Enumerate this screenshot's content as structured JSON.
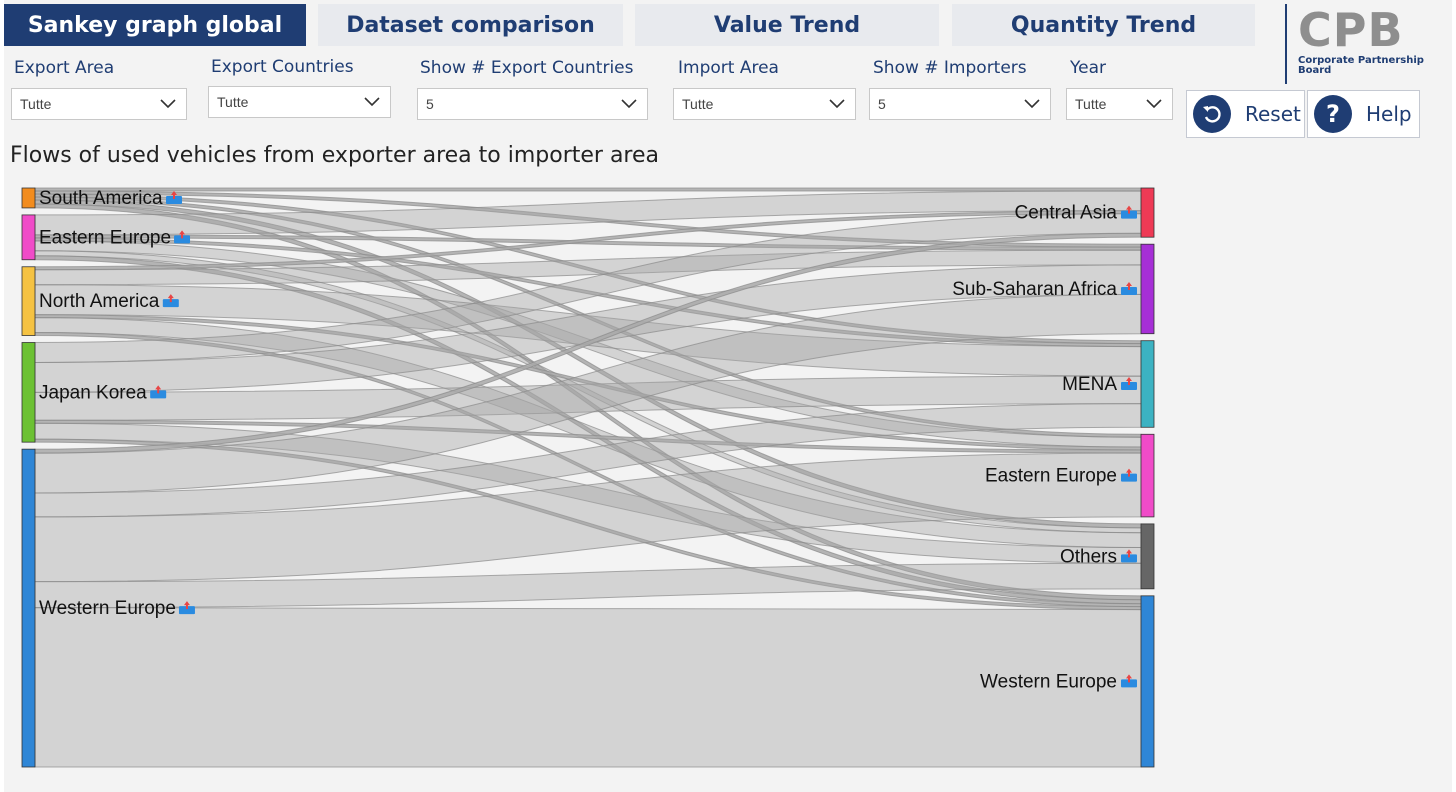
{
  "tabs": [
    {
      "label": "Sankey graph global",
      "active": true
    },
    {
      "label": "Dataset comparison",
      "active": false
    },
    {
      "label": "Value Trend",
      "active": false
    },
    {
      "label": "Quantity Trend",
      "active": false
    }
  ],
  "logo": {
    "mark": "CPB",
    "line1": "Corporate Partnership",
    "line2": "Board"
  },
  "filters": [
    {
      "label": "Export Area",
      "value": "Tutte"
    },
    {
      "label": "Export Countries",
      "value": "Tutte"
    },
    {
      "label": "Show # Export Countries",
      "value": "5"
    },
    {
      "label": "Import Area",
      "value": "Tutte"
    },
    {
      "label": "Show # Importers",
      "value": "5"
    },
    {
      "label": "Year",
      "value": "Tutte"
    }
  ],
  "buttons": {
    "reset": "Reset",
    "help": "Help",
    "reset_icon": "reset-icon",
    "help_icon": "help-icon"
  },
  "chart_data": {
    "type": "sankey",
    "title": "Flows of used vehicles from exporter area to importer area",
    "sources": [
      {
        "name": "South America",
        "color": "#f28c1e"
      },
      {
        "name": "Eastern Europe",
        "color": "#f04bc8"
      },
      {
        "name": "North America",
        "color": "#f5c242"
      },
      {
        "name": "Japan Korea",
        "color": "#6cc133"
      },
      {
        "name": "Western Europe",
        "color": "#2f86d6"
      }
    ],
    "targets": [
      {
        "name": "Central Asia",
        "color": "#ee3a55"
      },
      {
        "name": "Sub-Saharan Africa",
        "color": "#a62fd6"
      },
      {
        "name": "MENA",
        "color": "#3cb2c2"
      },
      {
        "name": "Eastern Europe",
        "color": "#f04bc8"
      },
      {
        "name": "Others",
        "color": "#666666"
      },
      {
        "name": "Western Europe",
        "color": "#2f86d6"
      }
    ],
    "links": [
      {
        "source": 0,
        "target": 0,
        "value": 0.3
      },
      {
        "source": 0,
        "target": 1,
        "value": 0.3
      },
      {
        "source": 0,
        "target": 2,
        "value": 0.3
      },
      {
        "source": 0,
        "target": 3,
        "value": 0.3
      },
      {
        "source": 0,
        "target": 4,
        "value": 0.4
      },
      {
        "source": 0,
        "target": 5,
        "value": 0.4
      },
      {
        "source": 1,
        "target": 0,
        "value": 2.0
      },
      {
        "source": 1,
        "target": 1,
        "value": 0.3
      },
      {
        "source": 1,
        "target": 2,
        "value": 0.3
      },
      {
        "source": 1,
        "target": 3,
        "value": 1.0
      },
      {
        "source": 1,
        "target": 4,
        "value": 0.5
      },
      {
        "source": 1,
        "target": 5,
        "value": 0.4
      },
      {
        "source": 2,
        "target": 0,
        "value": 0.3
      },
      {
        "source": 2,
        "target": 1,
        "value": 1.5
      },
      {
        "source": 2,
        "target": 2,
        "value": 3.0
      },
      {
        "source": 2,
        "target": 3,
        "value": 0.3
      },
      {
        "source": 2,
        "target": 4,
        "value": 1.5
      },
      {
        "source": 2,
        "target": 5,
        "value": 0.3
      },
      {
        "source": 3,
        "target": 0,
        "value": 2.0
      },
      {
        "source": 3,
        "target": 1,
        "value": 3.0
      },
      {
        "source": 3,
        "target": 2,
        "value": 2.8
      },
      {
        "source": 3,
        "target": 3,
        "value": 0.3
      },
      {
        "source": 3,
        "target": 4,
        "value": 1.6
      },
      {
        "source": 3,
        "target": 5,
        "value": 0.3
      },
      {
        "source": 4,
        "target": 0,
        "value": 0.4
      },
      {
        "source": 4,
        "target": 1,
        "value": 4.0
      },
      {
        "source": 4,
        "target": 2,
        "value": 2.4
      },
      {
        "source": 4,
        "target": 3,
        "value": 6.5
      },
      {
        "source": 4,
        "target": 4,
        "value": 2.6
      },
      {
        "source": 4,
        "target": 5,
        "value": 16.0
      }
    ]
  }
}
